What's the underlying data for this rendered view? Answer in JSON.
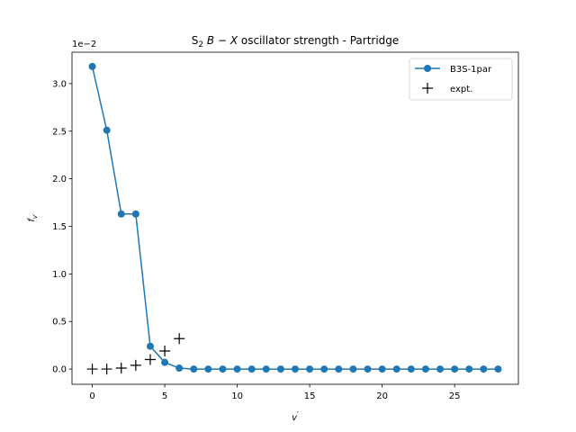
{
  "chart_data": {
    "type": "line",
    "title_parts": {
      "prefix": "S",
      "subscript": "2",
      "italic_b": "B",
      "minus": " − ",
      "italic_x": "X",
      "suffix": " oscillator strength - Partridge"
    },
    "xlabel_parts": {
      "main": "v",
      "prime": "′"
    },
    "ylabel_parts": {
      "main": "f",
      "sub": "v′"
    },
    "y_offset_text": "1e−2",
    "xlim": [
      -1.4,
      29.4
    ],
    "ylim": [
      -0.0016,
      0.0333
    ],
    "x_ticks": [
      0,
      5,
      10,
      15,
      20,
      25
    ],
    "x_tick_labels": [
      "0",
      "5",
      "10",
      "15",
      "20",
      "25"
    ],
    "y_ticks": [
      0,
      0.005,
      0.01,
      0.015,
      0.02,
      0.025,
      0.03
    ],
    "y_tick_labels": [
      "0.0",
      "0.5",
      "1.0",
      "1.5",
      "2.0",
      "2.5",
      "3.0"
    ],
    "grid": false,
    "legend_position": "top-right",
    "series": [
      {
        "name": "B3S-1par",
        "style": "line-circle",
        "color": "#1f77b4",
        "x": [
          0,
          1,
          2,
          3,
          4,
          5,
          6,
          7,
          8,
          9,
          10,
          11,
          12,
          13,
          14,
          15,
          16,
          17,
          18,
          19,
          20,
          21,
          22,
          23,
          24,
          25,
          26,
          27,
          28
        ],
        "y": [
          0.0318,
          0.0251,
          0.0163,
          0.0163,
          0.0024,
          0.0007,
          0.0001,
          0,
          0,
          0,
          0,
          0,
          0,
          0,
          0,
          0,
          0,
          0,
          0,
          0,
          0,
          0,
          0,
          0,
          0,
          0,
          0,
          0,
          0
        ]
      },
      {
        "name": "expt.",
        "style": "plus",
        "color": "#000000",
        "x": [
          0,
          1,
          2,
          3,
          4,
          5,
          6
        ],
        "y": [
          0.0,
          0.0,
          0.0001,
          0.0004,
          0.001,
          0.0019,
          0.0032
        ]
      }
    ]
  }
}
